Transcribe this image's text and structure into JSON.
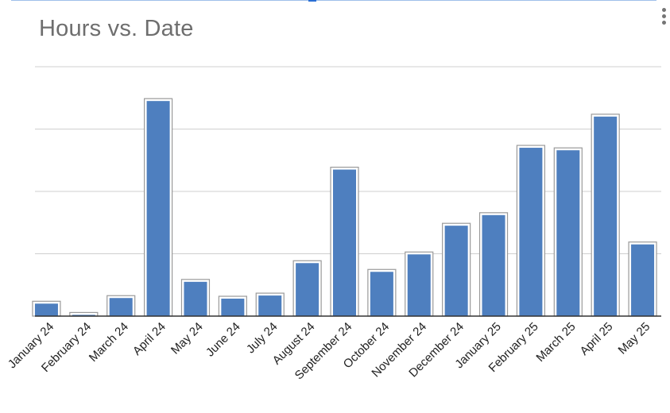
{
  "chart_data": {
    "type": "bar",
    "title": "Hours vs. Date",
    "xlabel": "",
    "ylabel": "",
    "categories": [
      "January 24",
      "February 24",
      "March 24",
      "April 24",
      "May 24",
      "June 24",
      "July 24",
      "August 24",
      "September 24",
      "October 24",
      "November 24",
      "December 24",
      "January 25",
      "February 25",
      "March 25",
      "April 25",
      "May 25"
    ],
    "series": [
      {
        "values": [
          0.2,
          0.02,
          0.29,
          3.45,
          0.55,
          0.28,
          0.33,
          0.85,
          2.35,
          0.71,
          0.99,
          1.45,
          1.62,
          2.7,
          2.66,
          3.2,
          1.15
        ]
      }
    ],
    "ylim": [
      0,
      4
    ],
    "y_gridlines": [
      1,
      2,
      3,
      4
    ],
    "grid": true,
    "legend": "none",
    "bar_color": "#4e7fbf",
    "bar_outline_color": "#9a9a9a"
  },
  "menu": {
    "icon": "more-vert-icon"
  }
}
